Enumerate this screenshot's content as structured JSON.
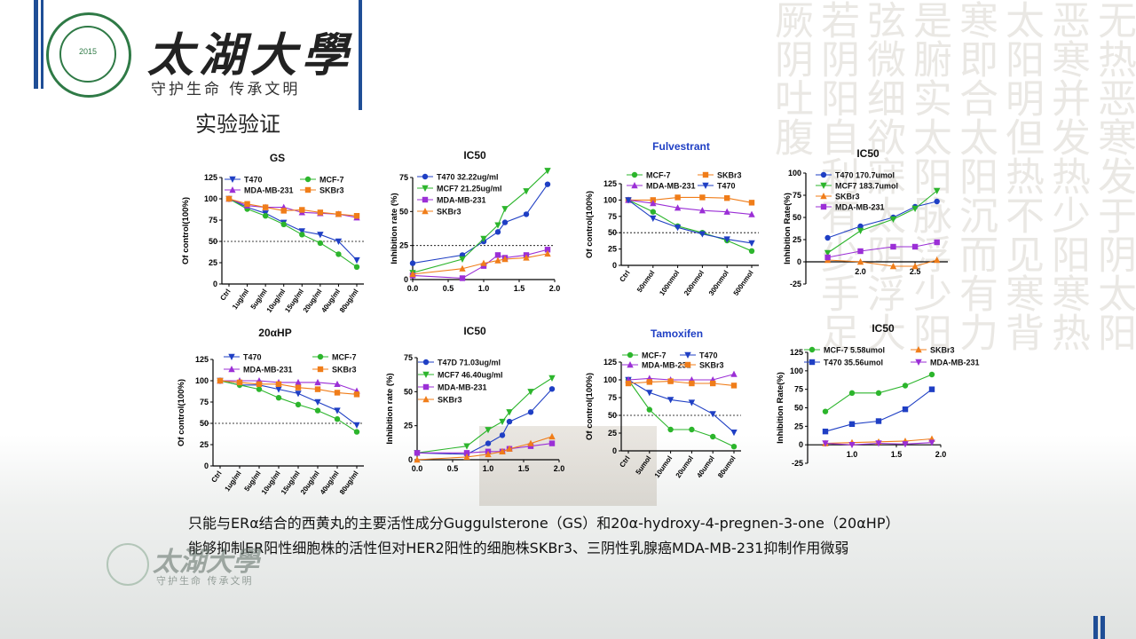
{
  "header": {
    "university_name": "太湖大學",
    "slogan": "守护生命  传承文明",
    "seal_text": "TAIHU UNIVERSITY ONLINE",
    "seal_year": "2015"
  },
  "slide": {
    "title": "实验验证",
    "caption_line1": "只能与ERα结合的西黄丸的主要活性成分Guggulsterone（GS）和20α-hydroxy-4-pregnen-3-one（20αHP）",
    "caption_line2": "能够抑制ER阳性细胞株的活性但对HER2阳性的细胞株SKBr3、三阴性乳腺癌MDA-MB-231抑制作用微弱"
  },
  "background_text": "无热恶寒发于阴太阳恶寒并发热少阳寒热太阳明但热不见寒背寒即合太阳沉而有力是腑实太阳脉浮少阳弦微细欲寐太阴浮大若阴阳自利有少手足厥阴吐腹",
  "colors": {
    "blue": "#1f3fc4",
    "green": "#2cb52c",
    "purple": "#9b2fd6",
    "orange": "#f07d19",
    "brand_bar": "#1f4e96"
  },
  "chart_data": [
    {
      "id": "gs_viability",
      "type": "line",
      "title": "GS",
      "ylabel": "Of control(100%)",
      "categories": [
        "Ctrl",
        "1ug/ml",
        "5ug/ml",
        "10ug/ml",
        "15ug/ml",
        "20ug/ml",
        "40ug/ml",
        "80ug/ml"
      ],
      "ylim": [
        0,
        125
      ],
      "yticks": [
        0,
        25,
        50,
        75,
        100,
        125
      ],
      "reference_line": 50,
      "series": [
        {
          "name": "T470",
          "color": "blue",
          "marker": "tri-down",
          "values": [
            100,
            90,
            83,
            72,
            62,
            58,
            50,
            28
          ]
        },
        {
          "name": "MCF-7",
          "color": "green",
          "marker": "circle",
          "values": [
            100,
            88,
            80,
            70,
            58,
            48,
            35,
            20
          ]
        },
        {
          "name": "MDA-MB-231",
          "color": "purple",
          "marker": "tri-up",
          "values": [
            100,
            92,
            90,
            90,
            84,
            83,
            82,
            78
          ]
        },
        {
          "name": "SKBr3",
          "color": "orange",
          "marker": "square",
          "values": [
            100,
            94,
            90,
            86,
            87,
            84,
            82,
            80
          ]
        }
      ]
    },
    {
      "id": "gs_ic50",
      "type": "scatter",
      "title": "IC50",
      "ylabel": "Inhibition rate (%)",
      "xlim": [
        0,
        2
      ],
      "xticks": [
        "0.0",
        "0.5",
        "1.0",
        "1.5",
        "2.0"
      ],
      "ylim": [
        0,
        75
      ],
      "yticks": [
        0,
        25,
        50,
        75
      ],
      "reference_line": 25,
      "series": [
        {
          "name": "T470",
          "label": "T470 32.22ug/ml",
          "color": "blue",
          "marker": "circle",
          "x": [
            0,
            0.7,
            1.0,
            1.2,
            1.3,
            1.6,
            1.9
          ],
          "y": [
            12,
            18,
            28,
            35,
            42,
            48,
            70
          ]
        },
        {
          "name": "MCF7",
          "label": "MCF7 21.25ug/ml",
          "color": "green",
          "marker": "tri-down",
          "x": [
            0,
            0.7,
            1.0,
            1.2,
            1.3,
            1.6,
            1.9
          ],
          "y": [
            5,
            15,
            30,
            40,
            52,
            65,
            80
          ]
        },
        {
          "name": "MDA-MB-231",
          "label": "MDA-MB-231",
          "color": "purple",
          "marker": "square",
          "x": [
            0,
            0.7,
            1.0,
            1.2,
            1.3,
            1.6,
            1.9
          ],
          "y": [
            3,
            1,
            10,
            18,
            16,
            18,
            22
          ]
        },
        {
          "name": "SKBr3",
          "label": "SKBr3",
          "color": "orange",
          "marker": "tri-up",
          "x": [
            0,
            0.7,
            1.0,
            1.2,
            1.3,
            1.6,
            1.9
          ],
          "y": [
            4,
            8,
            12,
            14,
            15,
            16,
            19
          ]
        }
      ]
    },
    {
      "id": "fulvestrant_viability",
      "type": "line",
      "title": "Fulvestrant",
      "ylabel": "Of control(100%)",
      "categories": [
        "Ctrl",
        "50nmol",
        "100nmol",
        "200nmol",
        "300nmol",
        "500nmol"
      ],
      "ylim": [
        0,
        125
      ],
      "yticks": [
        0,
        25,
        50,
        75,
        100,
        125
      ],
      "reference_line": 50,
      "series": [
        {
          "name": "MCF-7",
          "color": "green",
          "marker": "circle",
          "values": [
            100,
            82,
            60,
            50,
            38,
            22
          ]
        },
        {
          "name": "SKBr3",
          "color": "orange",
          "marker": "square",
          "values": [
            100,
            100,
            104,
            104,
            103,
            96
          ]
        },
        {
          "name": "MDA-MB-231",
          "color": "purple",
          "marker": "tri-up",
          "values": [
            100,
            95,
            88,
            84,
            82,
            78
          ]
        },
        {
          "name": "T470",
          "color": "blue",
          "marker": "tri-down",
          "values": [
            100,
            72,
            58,
            48,
            40,
            34
          ]
        }
      ]
    },
    {
      "id": "fulvestrant_ic50",
      "type": "scatter",
      "title": "IC50",
      "ylabel": "Inhibition Rate(%)",
      "xlim": [
        1.5,
        2.8
      ],
      "xticks": [
        "2.0",
        "2.5"
      ],
      "ylim": [
        -25,
        100
      ],
      "yticks": [
        -25,
        0,
        25,
        50,
        75,
        100
      ],
      "reference_line": null,
      "series": [
        {
          "name": "T470",
          "label": "T470 170.7umol",
          "color": "blue",
          "marker": "circle",
          "x": [
            1.7,
            2.0,
            2.3,
            2.5,
            2.7
          ],
          "y": [
            27,
            40,
            50,
            62,
            68
          ]
        },
        {
          "name": "MCF7",
          "label": "MCF7 183.7umol",
          "color": "green",
          "marker": "tri-down",
          "x": [
            1.7,
            2.0,
            2.3,
            2.5,
            2.7
          ],
          "y": [
            10,
            35,
            48,
            60,
            80
          ]
        },
        {
          "name": "SKBr3",
          "label": "SKBr3",
          "color": "orange",
          "marker": "tri-up",
          "x": [
            1.7,
            2.0,
            2.3,
            2.5,
            2.7
          ],
          "y": [
            2,
            0,
            -5,
            -5,
            2
          ]
        },
        {
          "name": "MDA-MB-231",
          "label": "MDA-MB-231",
          "color": "purple",
          "marker": "square",
          "x": [
            1.7,
            2.0,
            2.3,
            2.5,
            2.7
          ],
          "y": [
            5,
            12,
            17,
            17,
            22
          ]
        }
      ]
    },
    {
      "id": "20ahp_viability",
      "type": "line",
      "title": "20αHP",
      "ylabel": "Of control(100%)",
      "categories": [
        "Ctrl",
        "1ug/ml",
        "5ug/ml",
        "10ug/ml",
        "15ug/ml",
        "20ug/ml",
        "40ug/ml",
        "80ug/ml"
      ],
      "ylim": [
        0,
        125
      ],
      "yticks": [
        0,
        25,
        50,
        75,
        100,
        125
      ],
      "reference_line": 50,
      "series": [
        {
          "name": "T470",
          "color": "blue",
          "marker": "tri-down",
          "values": [
            100,
            95,
            95,
            90,
            85,
            75,
            65,
            48
          ]
        },
        {
          "name": "MCF-7",
          "color": "green",
          "marker": "circle",
          "values": [
            100,
            95,
            90,
            80,
            72,
            65,
            55,
            40
          ]
        },
        {
          "name": "MDA-MB-231",
          "color": "purple",
          "marker": "tri-up",
          "values": [
            100,
            100,
            100,
            98,
            98,
            98,
            96,
            88
          ]
        },
        {
          "name": "SKBr3",
          "color": "orange",
          "marker": "square",
          "values": [
            100,
            98,
            96,
            96,
            92,
            90,
            86,
            84
          ]
        }
      ]
    },
    {
      "id": "20ahp_ic50",
      "type": "scatter",
      "title": "IC50",
      "ylabel": "Inhibition rate (%)",
      "xlim": [
        0,
        2
      ],
      "xticks": [
        "0.0",
        "0.5",
        "1.0",
        "1.5",
        "2.0"
      ],
      "ylim": [
        0,
        75
      ],
      "yticks": [
        0,
        25,
        50,
        75
      ],
      "reference_line": null,
      "series": [
        {
          "name": "T47D",
          "label": "T47D 71.03ug/ml",
          "color": "blue",
          "marker": "circle",
          "x": [
            0,
            0.7,
            1.0,
            1.2,
            1.3,
            1.6,
            1.9
          ],
          "y": [
            5,
            4,
            12,
            18,
            28,
            35,
            52
          ]
        },
        {
          "name": "MCF7",
          "label": "MCF7 46.40ug/ml",
          "color": "green",
          "marker": "tri-down",
          "x": [
            0,
            0.7,
            1.0,
            1.2,
            1.3,
            1.6,
            1.9
          ],
          "y": [
            5,
            10,
            22,
            28,
            35,
            50,
            60
          ]
        },
        {
          "name": "MDA-MB-231",
          "label": "MDA-MB-231",
          "color": "purple",
          "marker": "square",
          "x": [
            0,
            0.7,
            1.0,
            1.2,
            1.3,
            1.6,
            1.9
          ],
          "y": [
            5,
            5,
            6,
            6,
            8,
            10,
            12
          ]
        },
        {
          "name": "SKBr3",
          "label": "SKBr3",
          "color": "orange",
          "marker": "tri-up",
          "x": [
            0,
            0.7,
            1.0,
            1.2,
            1.3,
            1.6,
            1.9
          ],
          "y": [
            0,
            2,
            4,
            6,
            8,
            12,
            17
          ]
        }
      ]
    },
    {
      "id": "tamoxifen_viability",
      "type": "line",
      "title": "Tamoxifen",
      "ylabel": "Of control(100%)",
      "categories": [
        "Ctrl",
        "5umol",
        "10umol",
        "20umol",
        "40umol",
        "80umol"
      ],
      "ylim": [
        0,
        125
      ],
      "yticks": [
        0,
        25,
        50,
        75,
        100,
        125
      ],
      "reference_line": 50,
      "series": [
        {
          "name": "MCF-7",
          "color": "green",
          "marker": "circle",
          "values": [
            100,
            58,
            30,
            30,
            20,
            6
          ]
        },
        {
          "name": "T470",
          "color": "blue",
          "marker": "tri-down",
          "values": [
            100,
            82,
            72,
            68,
            52,
            26
          ]
        },
        {
          "name": "MDA-MB-231",
          "color": "purple",
          "marker": "tri-up",
          "values": [
            100,
            102,
            100,
            100,
            100,
            108
          ]
        },
        {
          "name": "SKBr3",
          "color": "orange",
          "marker": "square",
          "values": [
            95,
            97,
            98,
            95,
            95,
            92
          ]
        }
      ]
    },
    {
      "id": "tamoxifen_ic50",
      "type": "scatter",
      "title": "IC50",
      "ylabel": "Inhibition Rate(%)",
      "xlim": [
        0.5,
        2.0
      ],
      "xticks": [
        "1.0",
        "1.5",
        "2.0"
      ],
      "ylim": [
        -25,
        125
      ],
      "yticks": [
        -25,
        0,
        25,
        50,
        75,
        100,
        125
      ],
      "reference_line": null,
      "series": [
        {
          "name": "MCF-7",
          "label": "MCF-7 5.58umol",
          "color": "green",
          "marker": "circle",
          "x": [
            0.7,
            1.0,
            1.3,
            1.6,
            1.9
          ],
          "y": [
            45,
            70,
            70,
            80,
            95
          ]
        },
        {
          "name": "SKBr3",
          "label": "SKBr3",
          "color": "orange",
          "marker": "tri-up",
          "x": [
            0.7,
            1.0,
            1.3,
            1.6,
            1.9
          ],
          "y": [
            2,
            3,
            4,
            5,
            8
          ]
        },
        {
          "name": "T470",
          "label": "T470 35.56umol",
          "color": "blue",
          "marker": "square",
          "x": [
            0.7,
            1.0,
            1.3,
            1.6,
            1.9
          ],
          "y": [
            18,
            28,
            32,
            48,
            75
          ]
        },
        {
          "name": "MDA-MB-231",
          "label": "MDA-MB-231",
          "color": "purple",
          "marker": "tri-down",
          "x": [
            0.7,
            1.0,
            1.3,
            1.6,
            1.9
          ],
          "y": [
            2,
            0,
            2,
            1,
            3
          ]
        }
      ]
    }
  ]
}
